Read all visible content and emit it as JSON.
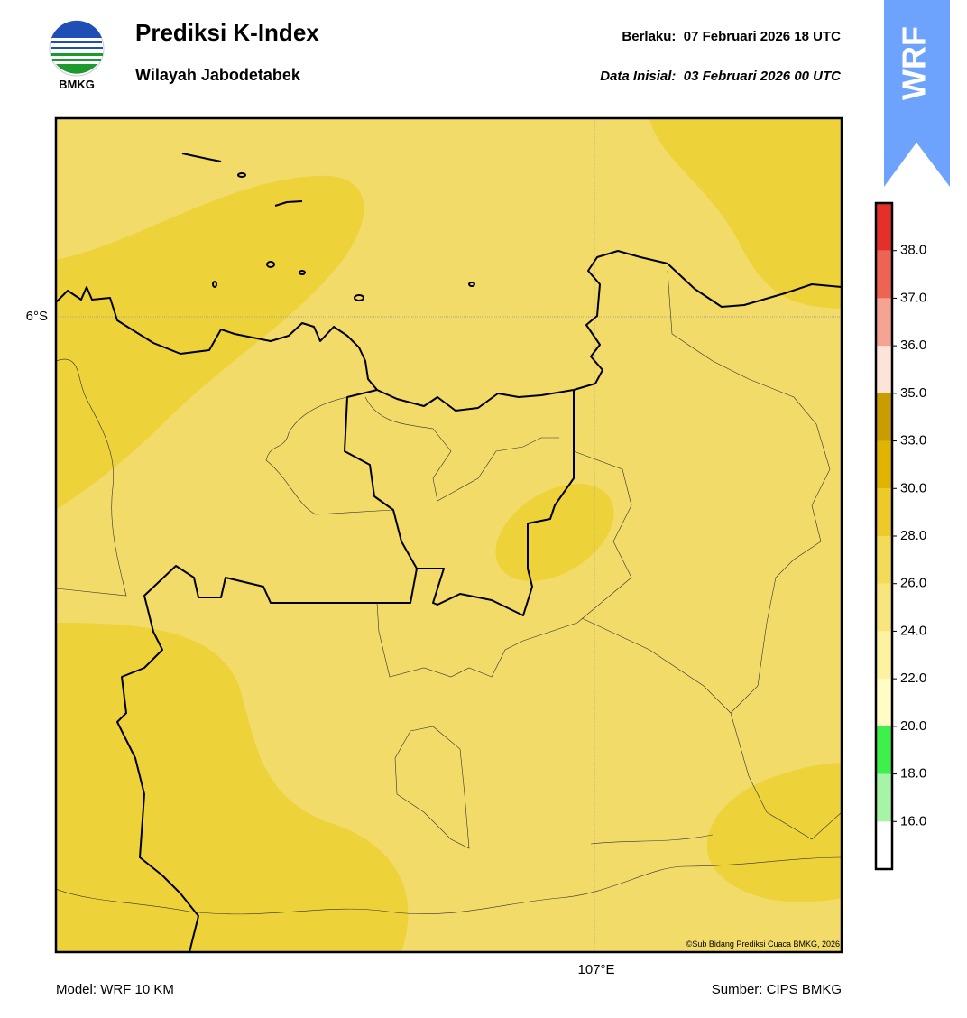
{
  "header": {
    "logo_text": "BMKG",
    "title": "Prediksi K-Index",
    "subtitle": "Wilayah Jabodetabek",
    "valid": "Berlaku:  07 Februari 2026 18 UTC",
    "initial": "Data Inisial:  03 Februari 2026 00 UTC",
    "badge": "WRF"
  },
  "map": {
    "lat_label": "6°S",
    "lon_label": "107°E",
    "copyright": "©Sub Bidang Prediksi Cuaca BMKG, 2026",
    "base_color": "#f2db68",
    "high_color": "#eed23a"
  },
  "colorbar": {
    "ticks": [
      {
        "value": 16,
        "label": "16.0"
      },
      {
        "value": 18,
        "label": "18.0"
      },
      {
        "value": 20,
        "label": "20.0"
      },
      {
        "value": 22,
        "label": "22.0"
      },
      {
        "value": 24,
        "label": "24.0"
      },
      {
        "value": 26,
        "label": "26.0"
      },
      {
        "value": 28,
        "label": "28.0"
      },
      {
        "value": 30,
        "label": "30.0"
      },
      {
        "value": 33,
        "label": "33.0"
      },
      {
        "value": 35,
        "label": "35.0"
      },
      {
        "value": 36,
        "label": "36.0"
      },
      {
        "value": 37,
        "label": "37.0"
      },
      {
        "value": 38,
        "label": "38.0"
      }
    ],
    "colors": [
      "#ffffff",
      "#a6f5a6",
      "#3ef04a",
      "#fffcc4",
      "#fdf2a2",
      "#f8e67c",
      "#f3da58",
      "#eec92a",
      "#e0b400",
      "#c99c00",
      "#fde4d8",
      "#f5a393",
      "#ee6453",
      "#e5302a"
    ]
  },
  "footer": {
    "model": "Model: WRF 10 KM",
    "source": "Sumber: CIPS BMKG"
  }
}
